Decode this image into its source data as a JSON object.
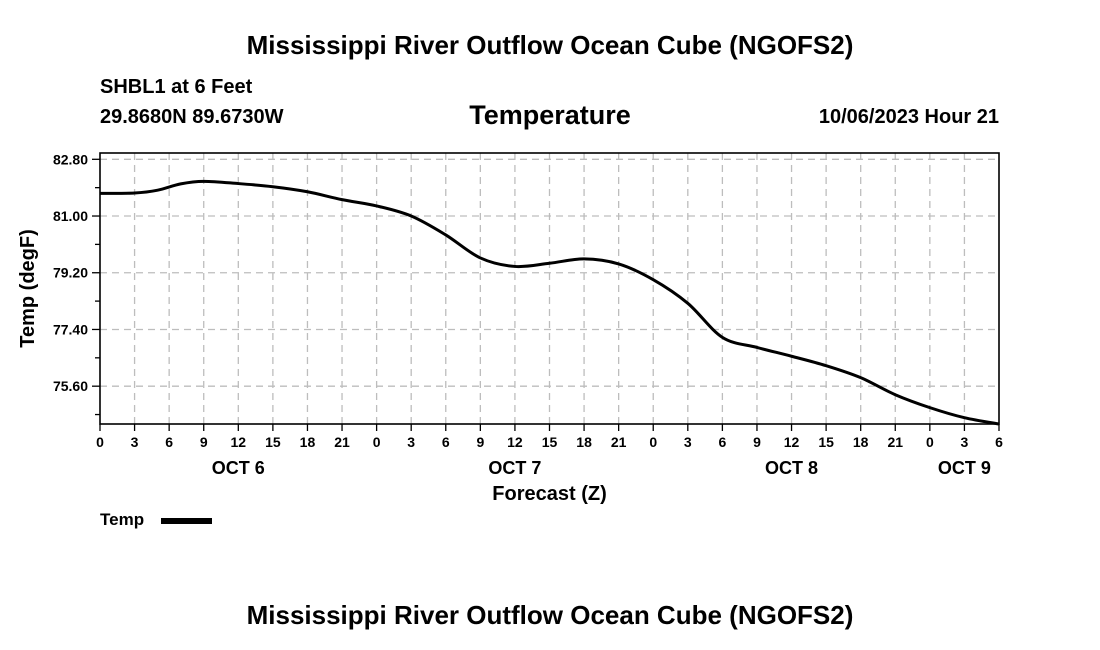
{
  "page": {
    "title": "Mississippi River Outflow Ocean Cube (NGOFS2)",
    "footer_title": "Mississippi River Outflow Ocean Cube (NGOFS2)",
    "station": "SHBL1 at 6 Feet",
    "coordinates": "29.8680N  89.6730W",
    "variable": "Temperature",
    "datetime": "10/06/2023 Hour 21"
  },
  "colors": {
    "line": "#000000",
    "grid": "#bdbdbd",
    "background": "#ffffff"
  },
  "chart_data": {
    "type": "line",
    "title": "Temperature",
    "xlabel": "Forecast (Z)",
    "ylabel": "Temp (degF)",
    "xlim_hours": [
      0,
      78
    ],
    "ylim": [
      74.4,
      83.0
    ],
    "yticks": [
      "82.80",
      "81.00",
      "79.20",
      "77.40",
      "75.60"
    ],
    "ytick_values": [
      82.8,
      81.0,
      79.2,
      77.4,
      75.6
    ],
    "xtick_hours": [
      0,
      3,
      6,
      9,
      12,
      15,
      18,
      21,
      24,
      27,
      30,
      33,
      36,
      39,
      42,
      45,
      48,
      51,
      54,
      57,
      60,
      63,
      66,
      69,
      72,
      75,
      78
    ],
    "xtick_labels": [
      "0",
      "3",
      "6",
      "9",
      "12",
      "15",
      "18",
      "21",
      "0",
      "3",
      "6",
      "9",
      "12",
      "15",
      "18",
      "21",
      "0",
      "3",
      "6",
      "9",
      "12",
      "15",
      "18",
      "21",
      "0",
      "3",
      "6"
    ],
    "day_labels": [
      {
        "label": "OCT 6",
        "hour": 12
      },
      {
        "label": "OCT 7",
        "hour": 36
      },
      {
        "label": "OCT 8",
        "hour": 60
      },
      {
        "label": "OCT 9",
        "hour": 75
      }
    ],
    "grid": true,
    "legend": {
      "label": "Temp",
      "placement": "bottom-left"
    },
    "series": [
      {
        "name": "Temp",
        "x": [
          0,
          3,
          5,
          7,
          9,
          12,
          15,
          18,
          21,
          24,
          27,
          30,
          33,
          36,
          39,
          42,
          45,
          48,
          51,
          54,
          57,
          60,
          63,
          66,
          69,
          72,
          75,
          78
        ],
        "values": [
          81.72,
          81.73,
          81.82,
          82.02,
          82.1,
          82.03,
          81.93,
          81.77,
          81.52,
          81.32,
          81.0,
          80.4,
          79.67,
          79.4,
          79.5,
          79.64,
          79.48,
          78.98,
          78.23,
          77.15,
          76.83,
          76.55,
          76.25,
          75.87,
          75.33,
          74.92,
          74.6,
          74.4
        ]
      }
    ]
  },
  "legend": {
    "label": "Temp"
  }
}
